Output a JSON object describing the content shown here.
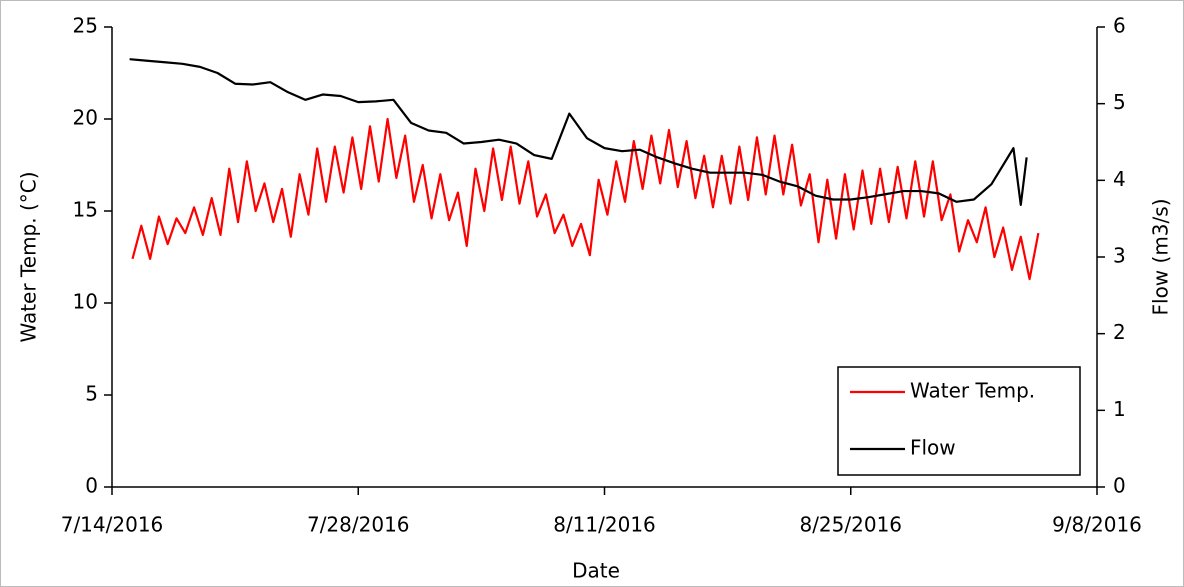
{
  "chart_data": {
    "type": "line",
    "x_label": "Date",
    "y_label": "Water Temp. (°C)",
    "y2_label": "Flow (m3/s)",
    "xlim": [
      "7/14/2016",
      "9/8/2016"
    ],
    "xticks": [
      "7/14/2016",
      "7/28/2016",
      "8/11/2016",
      "8/25/2016",
      "9/8/2016"
    ],
    "ylim": [
      0,
      25
    ],
    "yticks": [
      0,
      5,
      10,
      15,
      20,
      25
    ],
    "y2lim": [
      0,
      6
    ],
    "y2ticks": [
      0,
      1,
      2,
      3,
      4,
      5,
      6
    ],
    "legend": "lower right",
    "series": [
      {
        "name": "Water Temp.",
        "color": "#ff0000",
        "x": [
          "7/15/2016 04:00",
          "7/15/2016 16:00",
          "7/16/2016 04:00",
          "7/16/2016 16:00",
          "7/17/2016 04:00",
          "7/17/2016 16:00",
          "7/18/2016 04:00",
          "7/18/2016 16:00",
          "7/19/2016 04:00",
          "7/19/2016 16:00",
          "7/20/2016 04:00",
          "7/20/2016 16:00",
          "7/21/2016 04:00",
          "7/21/2016 16:00",
          "7/22/2016 04:00",
          "7/22/2016 16:00",
          "7/23/2016 04:00",
          "7/23/2016 16:00",
          "7/24/2016 04:00",
          "7/24/2016 16:00",
          "7/25/2016 04:00",
          "7/25/2016 16:00",
          "7/26/2016 04:00",
          "7/26/2016 16:00",
          "7/27/2016 04:00",
          "7/27/2016 16:00",
          "7/28/2016 04:00",
          "7/28/2016 16:00",
          "7/29/2016 04:00",
          "7/29/2016 16:00",
          "7/30/2016 04:00",
          "7/30/2016 16:00",
          "7/31/2016 04:00",
          "7/31/2016 16:00",
          "8/1/2016 04:00",
          "8/1/2016 16:00",
          "8/2/2016 04:00",
          "8/2/2016 16:00",
          "8/3/2016 04:00",
          "8/3/2016 16:00",
          "8/4/2016 04:00",
          "8/4/2016 16:00",
          "8/5/2016 04:00",
          "8/5/2016 16:00",
          "8/6/2016 04:00",
          "8/6/2016 16:00",
          "8/7/2016 04:00",
          "8/7/2016 16:00",
          "8/8/2016 04:00",
          "8/8/2016 16:00",
          "8/9/2016 04:00",
          "8/9/2016 16:00",
          "8/10/2016 04:00",
          "8/10/2016 16:00",
          "8/11/2016 04:00",
          "8/11/2016 16:00",
          "8/12/2016 04:00",
          "8/12/2016 16:00",
          "8/13/2016 04:00",
          "8/13/2016 16:00",
          "8/14/2016 04:00",
          "8/14/2016 16:00",
          "8/15/2016 04:00",
          "8/15/2016 16:00",
          "8/16/2016 04:00",
          "8/16/2016 16:00",
          "8/17/2016 04:00",
          "8/17/2016 16:00",
          "8/18/2016 04:00",
          "8/18/2016 16:00",
          "8/19/2016 04:00",
          "8/19/2016 16:00",
          "8/20/2016 04:00",
          "8/20/2016 16:00",
          "8/21/2016 04:00",
          "8/21/2016 16:00",
          "8/22/2016 04:00",
          "8/22/2016 16:00",
          "8/23/2016 04:00",
          "8/23/2016 16:00",
          "8/24/2016 04:00",
          "8/24/2016 16:00",
          "8/25/2016 04:00",
          "8/25/2016 16:00",
          "8/26/2016 04:00",
          "8/26/2016 16:00",
          "8/27/2016 04:00",
          "8/27/2016 16:00",
          "8/28/2016 04:00",
          "8/28/2016 16:00",
          "8/29/2016 04:00",
          "8/29/2016 16:00",
          "8/30/2016 04:00",
          "8/30/2016 16:00",
          "8/31/2016 04:00",
          "8/31/2016 16:00",
          "9/1/2016 04:00",
          "9/1/2016 16:00",
          "9/2/2016 04:00",
          "9/2/2016 16:00",
          "9/3/2016 04:00",
          "9/3/2016 16:00",
          "9/4/2016 04:00",
          "9/4/2016 16:00"
        ],
        "values": [
          12.4,
          14.2,
          12.4,
          14.7,
          13.2,
          14.6,
          13.8,
          15.2,
          13.7,
          15.7,
          13.7,
          17.3,
          14.4,
          17.7,
          15.0,
          16.5,
          14.4,
          16.2,
          13.6,
          17.0,
          14.8,
          18.4,
          15.5,
          18.5,
          16.0,
          19.0,
          16.2,
          19.6,
          16.6,
          20.0,
          16.8,
          19.1,
          15.5,
          17.5,
          14.6,
          17.0,
          14.5,
          16.0,
          13.1,
          17.3,
          15.0,
          18.4,
          15.6,
          18.5,
          15.4,
          17.7,
          14.7,
          15.9,
          13.8,
          14.8,
          13.1,
          14.3,
          12.6,
          16.7,
          14.8,
          17.7,
          15.5,
          18.8,
          16.2,
          19.1,
          16.5,
          19.4,
          16.3,
          18.8,
          15.7,
          18.0,
          15.2,
          18.0,
          15.4,
          18.5,
          15.6,
          19.0,
          15.9,
          19.1,
          15.9,
          18.6,
          15.3,
          17.0,
          13.3,
          16.7,
          13.5,
          17.0,
          14.0,
          17.2,
          14.3,
          17.3,
          14.4,
          17.4,
          14.6,
          17.7,
          14.7,
          17.7,
          14.5,
          15.9,
          12.8,
          14.5,
          13.3,
          15.2,
          12.5,
          14.1,
          11.8,
          13.6,
          11.3,
          13.8
        ]
      },
      {
        "name": "Flow",
        "color": "#000000",
        "axis": "y2",
        "x": [
          "7/15/2016",
          "7/16/2016",
          "7/17/2016",
          "7/18/2016",
          "7/19/2016",
          "7/20/2016",
          "7/21/2016",
          "7/22/2016",
          "7/23/2016",
          "7/24/2016",
          "7/25/2016",
          "7/26/2016",
          "7/27/2016",
          "7/28/2016",
          "7/29/2016",
          "7/30/2016",
          "7/31/2016",
          "8/1/2016",
          "8/2/2016",
          "8/3/2016",
          "8/4/2016",
          "8/5/2016",
          "8/6/2016",
          "8/7/2016",
          "8/8/2016",
          "8/9/2016",
          "8/10/2016",
          "8/11/2016",
          "8/12/2016",
          "8/13/2016",
          "8/14/2016",
          "8/15/2016",
          "8/16/2016",
          "8/17/2016",
          "8/18/2016",
          "8/19/2016",
          "8/20/2016",
          "8/21/2016",
          "8/22/2016",
          "8/23/2016",
          "8/24/2016",
          "8/25/2016",
          "8/26/2016",
          "8/27/2016",
          "8/28/2016",
          "8/29/2016",
          "8/30/2016",
          "8/31/2016",
          "9/1/2016",
          "9/2/2016",
          "9/3/2016 06:00",
          "9/3/2016 16:00",
          "9/4/2016"
        ],
        "values": [
          5.58,
          5.56,
          5.54,
          5.52,
          5.48,
          5.4,
          5.26,
          5.25,
          5.28,
          5.15,
          5.05,
          5.12,
          5.1,
          5.02,
          5.03,
          5.05,
          4.75,
          4.65,
          4.62,
          4.48,
          4.5,
          4.53,
          4.48,
          4.33,
          4.28,
          4.87,
          4.55,
          4.42,
          4.38,
          4.4,
          4.3,
          4.22,
          4.15,
          4.1,
          4.1,
          4.1,
          4.07,
          3.98,
          3.92,
          3.8,
          3.75,
          3.75,
          3.78,
          3.82,
          3.86,
          3.86,
          3.83,
          3.72,
          3.75,
          3.95,
          4.42,
          3.68,
          4.3
        ]
      }
    ]
  }
}
